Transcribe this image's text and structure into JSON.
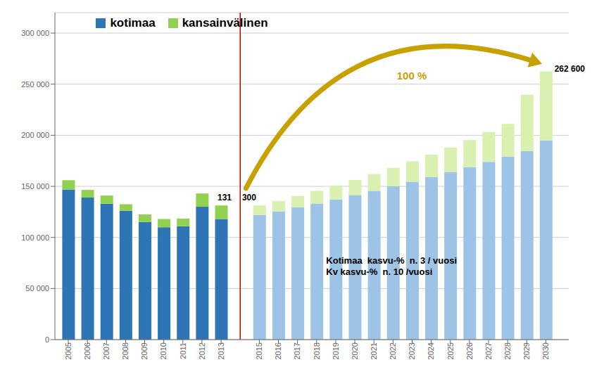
{
  "chart_data": {
    "type": "bar",
    "stacked": true,
    "x": [
      2005,
      2006,
      2007,
      2008,
      2009,
      2010,
      2011,
      2012,
      2013,
      2015,
      2016,
      2017,
      2018,
      2019,
      2020,
      2021,
      2022,
      2023,
      2024,
      2025,
      2026,
      2027,
      2028,
      2029,
      2030
    ],
    "xlim": [
      2004.3,
      2031.2
    ],
    "xticks": [
      2005,
      2006,
      2007,
      2008,
      2009,
      2010,
      2011,
      2012,
      2013,
      2015,
      2016,
      2017,
      2018,
      2019,
      2020,
      2021,
      2022,
      2023,
      2024,
      2025,
      2026,
      2027,
      2028,
      2029,
      2030
    ],
    "ylim": [
      0,
      320000
    ],
    "yticks": [
      0,
      {
        "value": 50000,
        "label": "50 000"
      },
      {
        "value": 100000,
        "label": "100 000"
      },
      {
        "value": 150000,
        "label": "150 000"
      },
      {
        "value": 200000,
        "label": "200 000"
      },
      {
        "value": 250000,
        "label": "250 000"
      },
      {
        "value": 300000,
        "label": "300 000"
      }
    ],
    "grid": true,
    "legend": "upper left",
    "series": [
      {
        "name": "kotimaa",
        "color": "#2e75b6",
        "colors": [
          "#2e75b6",
          "#2e75b6",
          "#2e75b6",
          "#2e75b6",
          "#2e75b6",
          "#2e75b6",
          "#2e75b6",
          "#2e75b6",
          "#2e75b6",
          "#9dc3e6",
          "#9dc3e6",
          "#9dc3e6",
          "#9dc3e6",
          "#9dc3e6",
          "#9dc3e6",
          "#9dc3e6",
          "#9dc3e6",
          "#9dc3e6",
          "#9dc3e6",
          "#9dc3e6",
          "#9dc3e6",
          "#9dc3e6",
          "#9dc3e6",
          "#9dc3e6",
          "#9dc3e6"
        ],
        "values": [
          147000,
          139000,
          133000,
          126000,
          115000,
          110000,
          111000,
          130000,
          118000,
          122000,
          125500,
          129300,
          133200,
          137200,
          141400,
          145600,
          150000,
          154500,
          159100,
          163900,
          168800,
          173900,
          179100,
          184500,
          195000
        ]
      },
      {
        "name": "kansainvälinen",
        "color": "#92d050",
        "colors": [
          "#92d050",
          "#92d050",
          "#92d050",
          "#92d050",
          "#92d050",
          "#92d050",
          "#92d050",
          "#92d050",
          "#92d050",
          "#d9f0b0",
          "#d9f0b0",
          "#d9f0b0",
          "#d9f0b0",
          "#d9f0b0",
          "#d9f0b0",
          "#d9f0b0",
          "#d9f0b0",
          "#d9f0b0",
          "#d9f0b0",
          "#d9f0b0",
          "#d9f0b0",
          "#d9f0b0",
          "#d9f0b0",
          "#d9f0b0",
          "#d9f0b0"
        ],
        "values": [
          9000,
          7500,
          8000,
          6500,
          7500,
          8000,
          7500,
          13000,
          13300,
          9300,
          10200,
          11200,
          12400,
          13600,
          14900,
          16400,
          18100,
          19900,
          21900,
          24100,
          26500,
          29100,
          32000,
          55100,
          67600
        ]
      }
    ],
    "reference_lines": [
      {
        "x": 2014,
        "color": "#cc0000"
      }
    ],
    "annotations": [
      {
        "text": "131"
      },
      {
        "text": "300"
      },
      {
        "text": "262 600"
      },
      {
        "text": "100 %",
        "color": "#c8a000"
      },
      {
        "text": "Kotimaa  kasvu-%  n. 3 / vuosi\nKv kasvu-%  n. 10 /vuosi"
      }
    ]
  }
}
